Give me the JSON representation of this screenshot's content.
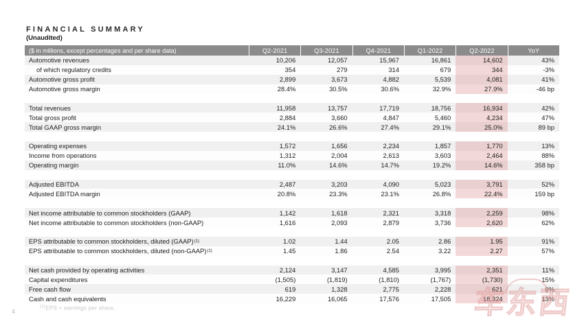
{
  "page": {
    "title": "FINANCIAL SUMMARY",
    "subtitle": "(Unaudited)",
    "page_number": "4",
    "footnote_sup": "(1)",
    "footnote_text": "EPS = earnings per share.",
    "watermark_text": "车东西"
  },
  "colors": {
    "header_bg": "#8b8b8b",
    "stripe": "#f0f0f0",
    "row_white": "#fdfdfd",
    "highlight": "rgba(214,120,120,0.27)",
    "watermark": "rgba(226,154,154,0.5)"
  },
  "table": {
    "label_header": "($ in millions, except percentages and per share data)",
    "columns": [
      "Q2-2021",
      "Q3-2021",
      "Q4-2021",
      "Q1-2022",
      "Q2-2022",
      "YoY"
    ],
    "highlight_column_index": 4,
    "sections": [
      {
        "rows": [
          {
            "label": "Automotive revenues",
            "values": [
              "10,206",
              "12,057",
              "15,967",
              "16,861",
              "14,602",
              "43%"
            ]
          },
          {
            "label": "of which regulatory credits",
            "indent": true,
            "values": [
              "354",
              "279",
              "314",
              "679",
              "344",
              "-3%"
            ]
          },
          {
            "label": "Automotive gross profit",
            "values": [
              "2,899",
              "3,673",
              "4,882",
              "5,539",
              "4,081",
              "41%"
            ]
          },
          {
            "label": "Automotive gross margin",
            "values": [
              "28.4%",
              "30.5%",
              "30.6%",
              "32.9%",
              "27.9%",
              "-46 bp"
            ]
          }
        ]
      },
      {
        "rows": [
          {
            "label": "Total revenues",
            "values": [
              "11,958",
              "13,757",
              "17,719",
              "18,756",
              "16,934",
              "42%"
            ]
          },
          {
            "label": "Total gross profit",
            "values": [
              "2,884",
              "3,660",
              "4,847",
              "5,460",
              "4,234",
              "47%"
            ]
          },
          {
            "label": "Total GAAP gross margin",
            "values": [
              "24.1%",
              "26.6%",
              "27.4%",
              "29.1%",
              "25.0%",
              "89 bp"
            ]
          }
        ]
      },
      {
        "rows": [
          {
            "label": "Operating expenses",
            "values": [
              "1,572",
              "1,656",
              "2,234",
              "1,857",
              "1,770",
              "13%"
            ]
          },
          {
            "label": "Income from operations",
            "values": [
              "1,312",
              "2,004",
              "2,613",
              "3,603",
              "2,464",
              "88%"
            ]
          },
          {
            "label": "Operating margin",
            "values": [
              "11.0%",
              "14.6%",
              "14.7%",
              "19.2%",
              "14.6%",
              "358 bp"
            ]
          }
        ]
      },
      {
        "rows": [
          {
            "label": "Adjusted EBITDA",
            "values": [
              "2,487",
              "3,203",
              "4,090",
              "5,023",
              "3,791",
              "52%"
            ]
          },
          {
            "label": "Adjusted EBITDA margin",
            "values": [
              "20.8%",
              "23.3%",
              "23.1%",
              "26.8%",
              "22.4%",
              "159 bp"
            ]
          }
        ]
      },
      {
        "rows": [
          {
            "label": "Net income attributable to common stockholders (GAAP)",
            "values": [
              "1,142",
              "1,618",
              "2,321",
              "3,318",
              "2,259",
              "98%"
            ]
          },
          {
            "label": "Net income attributable to common stockholders (non-GAAP)",
            "values": [
              "1,616",
              "2,093",
              "2,879",
              "3,736",
              "2,620",
              "62%"
            ]
          }
        ]
      },
      {
        "rows": [
          {
            "label": "EPS attributable to common stockholders, diluted (GAAP)",
            "sup": "(1)",
            "values": [
              "1.02",
              "1.44",
              "2.05",
              "2.86",
              "1.95",
              "91%"
            ]
          },
          {
            "label": "EPS attributable to common stockholders, diluted (non-GAAP)",
            "sup": "(1)",
            "values": [
              "1.45",
              "1.86",
              "2.54",
              "3.22",
              "2.27",
              "57%"
            ]
          }
        ]
      },
      {
        "rows": [
          {
            "label": "Net cash provided by operating activities",
            "values": [
              "2,124",
              "3,147",
              "4,585",
              "3,995",
              "2,351",
              "11%"
            ]
          },
          {
            "label": "Capital expenditures",
            "values": [
              "(1,505)",
              "(1,819)",
              "(1,810)",
              "(1,767)",
              "(1,730)",
              "15%"
            ]
          },
          {
            "label": "Free cash flow",
            "values": [
              "619",
              "1,328",
              "2,775",
              "2,228",
              "621",
              "0%"
            ]
          },
          {
            "label": "Cash and cash equivalents",
            "values": [
              "16,229",
              "16,065",
              "17,576",
              "17,505",
              "18,324",
              "13%"
            ]
          }
        ]
      }
    ]
  }
}
